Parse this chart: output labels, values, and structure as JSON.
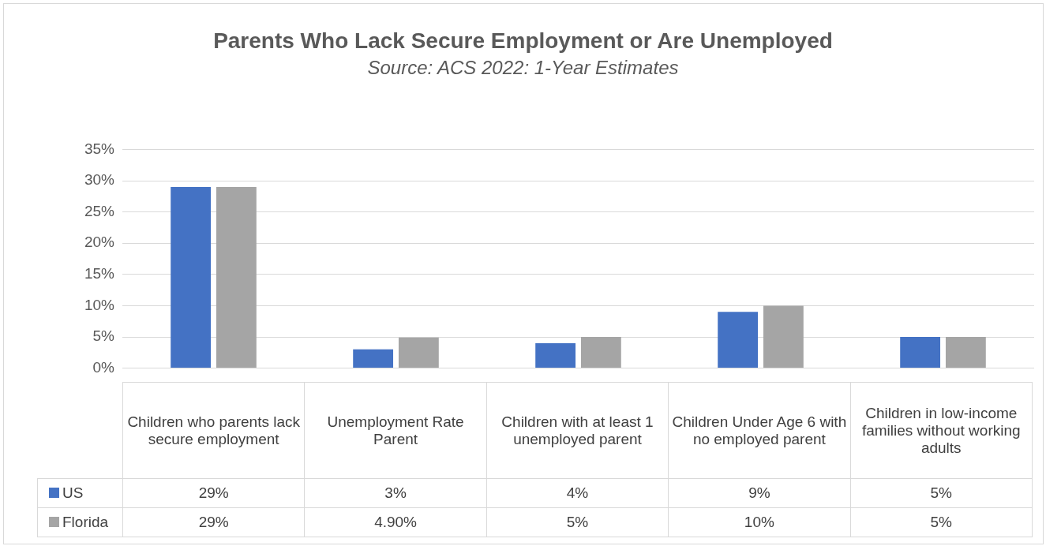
{
  "chart_data": {
    "type": "bar",
    "title": "Parents Who Lack Secure Employment or Are Unemployed",
    "subtitle": "Source: ACS 2022: 1-Year Estimates",
    "categories": [
      "Children who parents lack secure employment",
      "Unemployment Rate Parent",
      "Children with at least 1 unemployed parent",
      "Children Under Age 6 with no employed parent",
      "Children in low-income families without working adults"
    ],
    "series": [
      {
        "name": "US",
        "color": "#4472c4",
        "values": [
          29,
          3,
          4,
          9,
          5
        ],
        "value_labels": [
          "29%",
          "3%",
          "4%",
          "9%",
          "5%"
        ]
      },
      {
        "name": "Florida",
        "color": "#a5a5a5",
        "values": [
          29,
          4.9,
          5,
          10,
          5
        ],
        "value_labels": [
          "29%",
          "4.90%",
          "5%",
          "10%",
          "5%"
        ]
      }
    ],
    "ylim": [
      0,
      35
    ],
    "yticks": [
      {
        "value": 0,
        "label": "0%"
      },
      {
        "value": 5,
        "label": "5%"
      },
      {
        "value": 10,
        "label": "10%"
      },
      {
        "value": 15,
        "label": "15%"
      },
      {
        "value": 20,
        "label": "20%"
      },
      {
        "value": 25,
        "label": "25%"
      },
      {
        "value": 30,
        "label": "30%"
      },
      {
        "value": 35,
        "label": "35%"
      }
    ],
    "grid": "y",
    "legend": "bottom"
  }
}
